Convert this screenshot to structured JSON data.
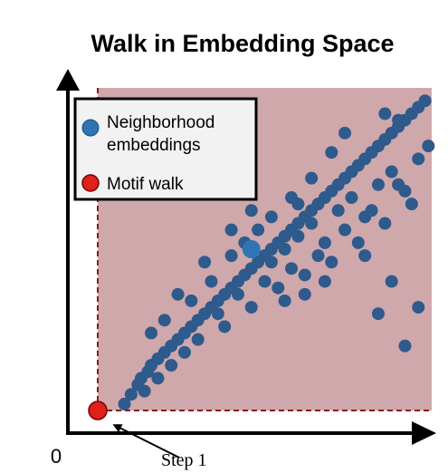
{
  "chart_data": {
    "type": "scatter",
    "title": "Walk in Embedding Space",
    "xlabel": "",
    "ylabel": "",
    "origin_label": "0",
    "legend": {
      "placement": "top-left",
      "entries": [
        {
          "label_lines": [
            "Neighborhood",
            "embeddings"
          ],
          "color": "#2f75b5"
        },
        {
          "label_lines": [
            "Motif walk"
          ],
          "color": "#e0201b"
        }
      ]
    },
    "annotation": "Step 1",
    "colors": {
      "region": "#cfa8ab",
      "points": "#2e5a8c",
      "points_bright": "#2f75b5",
      "walk": "#e0201b",
      "walk_line": "#8b1a1a",
      "axis": "#000000"
    },
    "series": [
      {
        "name": "Neighborhood embeddings",
        "description_points": "dense diagonal cloud of embedding points",
        "x": [
          0.08,
          0.1,
          0.12,
          0.13,
          0.15,
          0.16,
          0.18,
          0.2,
          0.22,
          0.24,
          0.26,
          0.28,
          0.3,
          0.32,
          0.34,
          0.36,
          0.38,
          0.4,
          0.42,
          0.44,
          0.46,
          0.48,
          0.5,
          0.52,
          0.54,
          0.56,
          0.58,
          0.6,
          0.62,
          0.64,
          0.66,
          0.68,
          0.7,
          0.72,
          0.74,
          0.76,
          0.78,
          0.8,
          0.82,
          0.84,
          0.86,
          0.88,
          0.9,
          0.92,
          0.94,
          0.96,
          0.98,
          0.4,
          0.44,
          0.48,
          0.52,
          0.56,
          0.6,
          0.64,
          0.68,
          0.72,
          0.76,
          0.8,
          0.84,
          0.88,
          0.92,
          0.96,
          0.36,
          0.42,
          0.5,
          0.58,
          0.66,
          0.74,
          0.82,
          0.9,
          0.3,
          0.26,
          0.22,
          0.18,
          0.14,
          0.38,
          0.46,
          0.54,
          0.62,
          0.7,
          0.78,
          0.86,
          0.94,
          0.34,
          0.28,
          0.2,
          0.92,
          0.96,
          0.88,
          0.84,
          0.99,
          0.9,
          0.86,
          0.74,
          0.7,
          0.64,
          0.58,
          0.52,
          0.46,
          0.4,
          0.32,
          0.24,
          0.16,
          0.56,
          0.62,
          0.68,
          0.8,
          0.6
        ],
        "y": [
          0.02,
          0.05,
          0.08,
          0.1,
          0.12,
          0.14,
          0.16,
          0.18,
          0.2,
          0.22,
          0.24,
          0.26,
          0.28,
          0.3,
          0.32,
          0.34,
          0.36,
          0.38,
          0.4,
          0.42,
          0.44,
          0.46,
          0.48,
          0.5,
          0.52,
          0.54,
          0.56,
          0.58,
          0.6,
          0.62,
          0.64,
          0.66,
          0.68,
          0.7,
          0.72,
          0.74,
          0.76,
          0.78,
          0.8,
          0.82,
          0.84,
          0.86,
          0.88,
          0.9,
          0.92,
          0.94,
          0.96,
          0.48,
          0.52,
          0.56,
          0.46,
          0.5,
          0.54,
          0.58,
          0.52,
          0.62,
          0.66,
          0.6,
          0.7,
          0.74,
          0.68,
          0.78,
          0.3,
          0.36,
          0.4,
          0.44,
          0.48,
          0.56,
          0.62,
          0.7,
          0.22,
          0.18,
          0.14,
          0.1,
          0.06,
          0.26,
          0.32,
          0.38,
          0.42,
          0.46,
          0.52,
          0.58,
          0.64,
          0.4,
          0.34,
          0.28,
          0.2,
          0.32,
          0.4,
          0.3,
          0.82,
          0.9,
          0.92,
          0.86,
          0.8,
          0.72,
          0.66,
          0.6,
          0.62,
          0.56,
          0.46,
          0.36,
          0.24,
          0.34,
          0.36,
          0.4,
          0.48,
          0.64
        ]
      },
      {
        "name": "Motif walk",
        "x": [
          0.0
        ],
        "y": [
          0.0
        ]
      }
    ],
    "highlight_point": {
      "x": 0.46,
      "y": 0.5
    },
    "xlim": [
      0,
      1
    ],
    "ylim": [
      0,
      1
    ],
    "grid": false
  }
}
